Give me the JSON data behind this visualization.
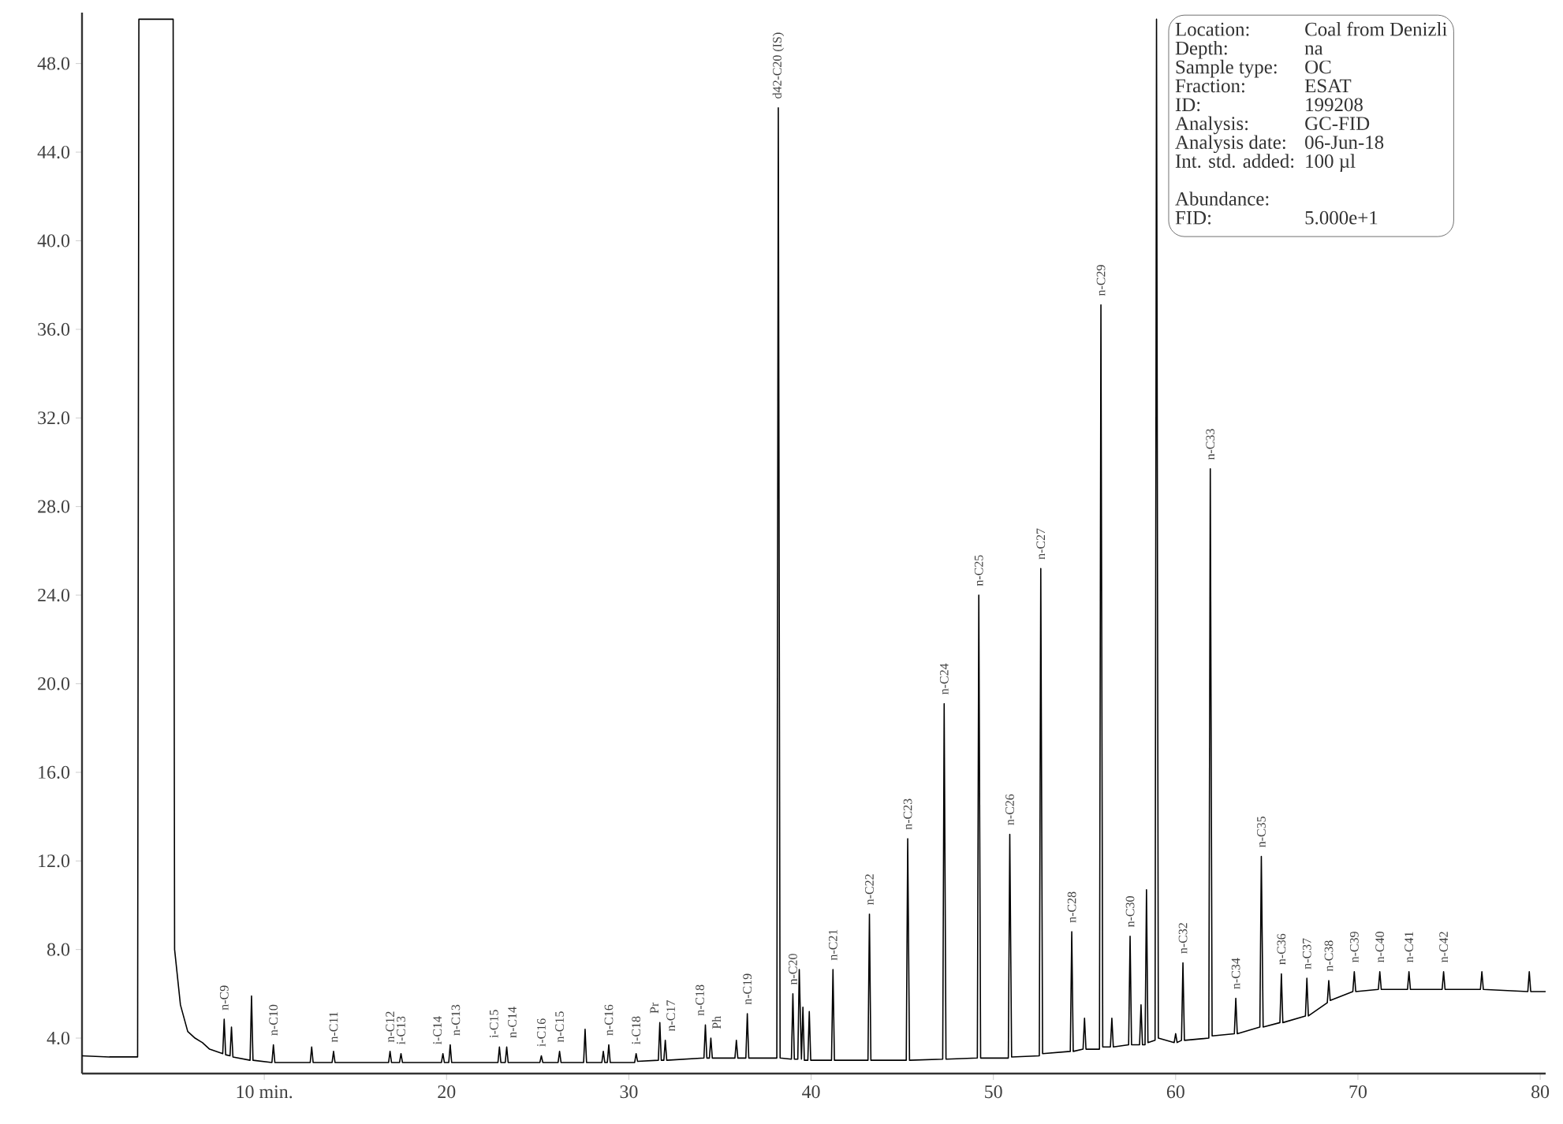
{
  "chart_data": {
    "type": "line",
    "color": "#000000",
    "marker": "none",
    "xlim": [
      0,
      80.3
    ],
    "ylim": [
      2.4,
      50.3
    ],
    "xticks": [
      {
        "value": 10,
        "label": "10 min."
      },
      20,
      30,
      40,
      50,
      60,
      70,
      80
    ],
    "yticks": [
      {
        "value": 4,
        "label": "4.0"
      },
      {
        "value": 8,
        "label": "8.0"
      },
      {
        "value": 12,
        "label": "12.0"
      },
      {
        "value": 16,
        "label": "16.0"
      },
      {
        "value": 20,
        "label": "20.0"
      },
      {
        "value": 24,
        "label": "24.0"
      },
      {
        "value": 28,
        "label": "28.0"
      },
      {
        "value": 32,
        "label": "32.0"
      },
      {
        "value": 36,
        "label": "36.0"
      },
      {
        "value": 40,
        "label": "40.0"
      },
      {
        "value": 44,
        "label": "44.0"
      },
      {
        "value": 48,
        "label": "48.0"
      }
    ],
    "x": [
      0,
      1.5,
      3.05,
      3.12,
      5.0,
      5.08,
      5.4,
      5.8,
      6.2,
      6.6,
      7.0,
      7.72,
      7.8,
      7.88,
      8.12,
      8.2,
      8.28,
      9.22,
      9.3,
      9.38,
      10.42,
      10.5,
      10.58,
      12.52,
      12.6,
      12.68,
      13.72,
      13.8,
      13.88,
      16.82,
      16.9,
      16.98,
      17.42,
      17.5,
      17.58,
      19.72,
      19.8,
      19.88,
      20.12,
      20.2,
      20.28,
      22.82,
      22.9,
      22.98,
      23.22,
      23.3,
      23.38,
      25.12,
      25.2,
      25.28,
      26.12,
      26.2,
      26.28,
      27.52,
      27.6,
      27.68,
      28.52,
      28.6,
      28.68,
      28.82,
      28.9,
      28.98,
      30.32,
      30.4,
      30.48,
      31.62,
      31.7,
      31.78,
      31.92,
      32.0,
      32.08,
      34.12,
      34.2,
      34.28,
      34.42,
      34.5,
      34.58,
      35.82,
      35.9,
      35.98,
      36.42,
      36.5,
      36.58,
      38.12,
      38.2,
      38.3,
      38.92,
      39.0,
      39.08,
      39.27,
      39.35,
      39.47,
      39.55,
      39.63,
      39.82,
      39.9,
      39.98,
      41.12,
      41.2,
      41.28,
      43.12,
      43.2,
      43.28,
      45.22,
      45.3,
      45.4,
      47.22,
      47.3,
      47.4,
      49.12,
      49.2,
      49.3,
      50.82,
      50.9,
      51.0,
      52.52,
      52.6,
      52.7,
      54.22,
      54.3,
      54.38,
      54.92,
      55.0,
      55.08,
      55.82,
      55.9,
      56.0,
      56.42,
      56.5,
      56.58,
      57.42,
      57.5,
      57.58,
      58.02,
      58.1,
      58.18,
      58.32,
      58.4,
      58.48,
      58.87,
      58.95,
      59.05,
      59.92,
      60.0,
      60.08,
      60.32,
      60.4,
      60.48,
      61.82,
      61.9,
      62.0,
      63.22,
      63.3,
      63.38,
      64.62,
      64.7,
      64.8,
      65.72,
      65.8,
      65.88,
      67.12,
      67.2,
      67.28,
      68.32,
      68.4,
      68.48,
      69.72,
      69.8,
      69.88,
      71.12,
      71.2,
      71.28,
      72.72,
      72.8,
      72.88,
      74.62,
      74.7,
      74.78,
      76.72,
      76.8,
      76.88,
      79.32,
      79.4,
      79.48,
      80.3
    ],
    "values": [
      3.2,
      3.15,
      3.15,
      50,
      50,
      8.0,
      5.5,
      4.3,
      4.0,
      3.8,
      3.5,
      3.3,
      4.85,
      3.25,
      3.2,
      4.5,
      3.15,
      3.0,
      5.9,
      3.0,
      2.9,
      3.7,
      2.9,
      2.9,
      3.6,
      2.9,
      2.9,
      3.4,
      2.9,
      2.9,
      3.4,
      2.9,
      2.9,
      3.3,
      2.9,
      2.9,
      3.3,
      2.9,
      2.9,
      3.7,
      2.9,
      2.9,
      3.6,
      2.9,
      2.9,
      3.6,
      2.9,
      2.9,
      3.2,
      2.9,
      2.9,
      3.4,
      2.9,
      2.9,
      4.4,
      2.9,
      2.9,
      3.4,
      2.9,
      2.9,
      3.7,
      2.9,
      2.9,
      3.3,
      2.95,
      3.0,
      4.7,
      3.0,
      3.0,
      3.9,
      3.0,
      3.1,
      4.6,
      3.1,
      3.1,
      4.0,
      3.1,
      3.1,
      3.9,
      3.1,
      3.1,
      5.1,
      3.1,
      3.1,
      46.0,
      3.1,
      3.05,
      6.0,
      3.05,
      3.05,
      7.1,
      3.05,
      5.4,
      3.0,
      3.0,
      5.2,
      3.0,
      3.0,
      7.1,
      3.0,
      3.0,
      9.6,
      3.0,
      3.0,
      13.0,
      3.0,
      3.05,
      19.1,
      3.05,
      3.1,
      24.0,
      3.1,
      3.1,
      13.2,
      3.15,
      3.2,
      25.2,
      3.3,
      3.4,
      8.8,
      3.4,
      3.5,
      4.9,
      3.5,
      3.5,
      37.1,
      3.6,
      3.6,
      4.9,
      3.6,
      3.7,
      8.6,
      3.7,
      3.7,
      5.5,
      3.7,
      3.7,
      10.7,
      3.8,
      3.9,
      50.0,
      4.0,
      3.8,
      4.2,
      3.8,
      3.9,
      7.4,
      3.9,
      4.0,
      29.7,
      4.1,
      4.2,
      5.8,
      4.2,
      4.5,
      12.2,
      4.5,
      4.7,
      6.9,
      4.7,
      5.0,
      6.7,
      5.0,
      5.6,
      6.6,
      5.7,
      6.1,
      7.0,
      6.1,
      6.2,
      7.0,
      6.2,
      6.2,
      7.0,
      6.2,
      6.2,
      7.0,
      6.2,
      6.2,
      7.0,
      6.2,
      6.1,
      7.0,
      6.1,
      6.1
    ],
    "annotations": [
      {
        "text": "n-C9",
        "x": 7.8,
        "y": 4.85
      },
      {
        "text": "n-C10",
        "x": 10.5,
        "y": 3.7
      },
      {
        "text": "n-C11",
        "x": 13.8,
        "y": 3.4
      },
      {
        "text": "n-C12",
        "x": 16.9,
        "y": 3.4
      },
      {
        "text": "i-C13",
        "x": 17.5,
        "y": 3.3
      },
      {
        "text": "i-C14",
        "x": 19.8,
        "y": 3.3
      },
      {
        "text": "n-C13",
        "x": 20.2,
        "y": 3.7
      },
      {
        "text": "i-C15",
        "x": 22.9,
        "y": 3.6
      },
      {
        "text": "n-C14",
        "x": 23.3,
        "y": 3.6
      },
      {
        "text": "i-C16",
        "x": 25.2,
        "y": 3.2
      },
      {
        "text": "n-C15",
        "x": 26.2,
        "y": 3.4
      },
      {
        "text": "n-C16",
        "x": 28.9,
        "y": 3.7
      },
      {
        "text": "i-C18",
        "x": 30.4,
        "y": 3.3
      },
      {
        "text": "Pr",
        "x": 31.7,
        "y": 4.7
      },
      {
        "text": "n-C17",
        "x": 32.0,
        "y": 3.9
      },
      {
        "text": "n-C18",
        "x": 34.2,
        "y": 4.6
      },
      {
        "text": "Ph",
        "x": 34.5,
        "y": 4.0
      },
      {
        "text": "n-C19",
        "x": 36.5,
        "y": 5.1
      },
      {
        "text": "d42-C20 (IS)",
        "x": 38.2,
        "y": 46.0
      },
      {
        "text": "n-C20",
        "x": 39.0,
        "y": 6.0
      },
      {
        "text": "n-C21",
        "x": 41.2,
        "y": 7.1
      },
      {
        "text": "n-C22",
        "x": 43.2,
        "y": 9.6
      },
      {
        "text": "n-C23",
        "x": 45.3,
        "y": 13.0
      },
      {
        "text": "n-C24",
        "x": 47.3,
        "y": 19.1
      },
      {
        "text": "n-C25",
        "x": 49.2,
        "y": 24.0
      },
      {
        "text": "n-C26",
        "x": 50.9,
        "y": 13.2
      },
      {
        "text": "n-C27",
        "x": 52.6,
        "y": 25.2
      },
      {
        "text": "n-C28",
        "x": 54.3,
        "y": 8.8
      },
      {
        "text": "n-C29",
        "x": 55.9,
        "y": 37.1
      },
      {
        "text": "n-C30",
        "x": 57.5,
        "y": 8.6
      },
      {
        "text": "n-C32",
        "x": 60.4,
        "y": 7.4
      },
      {
        "text": "n-C33",
        "x": 61.9,
        "y": 29.7
      },
      {
        "text": "n-C34",
        "x": 63.3,
        "y": 5.8
      },
      {
        "text": "n-C35",
        "x": 64.7,
        "y": 12.2
      },
      {
        "text": "n-C36",
        "x": 65.8,
        "y": 6.9
      },
      {
        "text": "n-C37",
        "x": 67.2,
        "y": 6.7
      },
      {
        "text": "n-C38",
        "x": 68.4,
        "y": 6.6
      },
      {
        "text": "n-C39",
        "x": 69.8,
        "y": 7.0
      },
      {
        "text": "n-C40",
        "x": 71.2,
        "y": 7.0
      },
      {
        "text": "n-C41",
        "x": 72.8,
        "y": 7.0
      },
      {
        "text": "n-C42",
        "x": 74.7,
        "y": 7.0
      },
      "Location:",
      "Coal from Denizli",
      "Depth:",
      "na",
      "Sample type:",
      "OC",
      "Fraction:",
      "ESAT",
      "ID:",
      "199208",
      "Analysis:",
      "GC-FID",
      "Analysis date:",
      "06-Jun-18",
      "Int. std. added:",
      "100 µl",
      "Abundance:",
      "FID:",
      "5.000e+1"
    ]
  }
}
